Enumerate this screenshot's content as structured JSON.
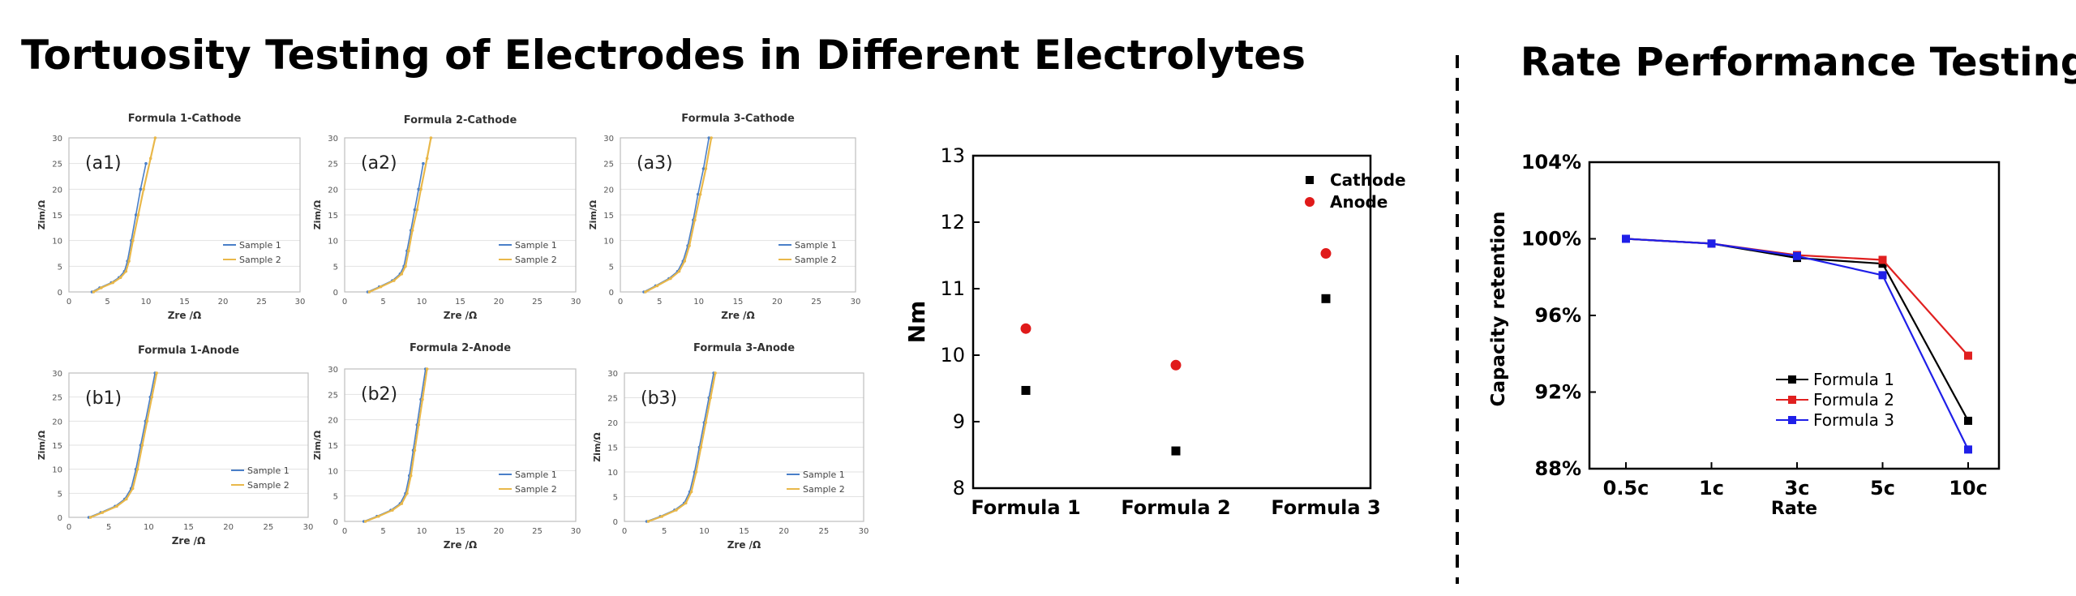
{
  "main_title": "Tortuosity Testing of Electrodes in Different Electrolytes",
  "side_title": "Rate Performance Testing",
  "nyquist_common": {
    "xlabel": "Zre /Ω",
    "ylabel": "Zim/Ω",
    "ticks": [
      "0",
      "5",
      "10",
      "15",
      "20",
      "25",
      "30"
    ],
    "legend": [
      "Sample 1",
      "Sample 2"
    ]
  },
  "chart_data": [
    {
      "type": "line",
      "title": "Formula 1-Cathode",
      "tag": "(a1)",
      "xlabel": "Zre /Ω",
      "ylabel": "Zim/Ω",
      "xlim": [
        0,
        30
      ],
      "ylim": [
        0,
        30
      ],
      "series": [
        {
          "name": "Sample 1",
          "color": "#4a7fc8",
          "x": [
            3,
            4,
            5.5,
            6.5,
            7.2,
            7.6,
            8.1,
            8.7,
            9.3,
            10.0
          ],
          "y": [
            0,
            0.8,
            1.8,
            2.8,
            4,
            6,
            10,
            15,
            20,
            25
          ]
        },
        {
          "name": "Sample 2",
          "color": "#e9b84a",
          "x": [
            3.2,
            4.2,
            5.7,
            6.7,
            7.4,
            7.8,
            8.3,
            9.0,
            9.7,
            10.6,
            11.2
          ],
          "y": [
            0,
            0.8,
            1.8,
            2.8,
            4,
            6,
            10,
            15,
            20,
            26,
            30
          ]
        }
      ]
    },
    {
      "type": "line",
      "title": "Formula 2-Cathode",
      "tag": "(a2)",
      "xlabel": "Zre /Ω",
      "ylabel": "Zim/Ω",
      "xlim": [
        0,
        30
      ],
      "ylim": [
        0,
        30
      ],
      "series": [
        {
          "name": "Sample 1",
          "color": "#4a7fc8",
          "x": [
            3,
            4.5,
            6.2,
            7.2,
            7.7,
            8.1,
            8.6,
            9.1,
            9.6,
            10.2
          ],
          "y": [
            0,
            1.0,
            2.2,
            3.5,
            5,
            8,
            12,
            16,
            20,
            25
          ]
        },
        {
          "name": "Sample 2",
          "color": "#e9b84a",
          "x": [
            3.2,
            4.7,
            6.4,
            7.4,
            7.9,
            8.3,
            8.8,
            9.4,
            9.9,
            10.7,
            11.2
          ],
          "y": [
            0,
            1.0,
            2.2,
            3.5,
            5,
            8,
            12,
            16,
            20,
            26,
            30
          ]
        }
      ]
    },
    {
      "type": "line",
      "title": "Formula 3-Cathode",
      "tag": "(a3)",
      "xlabel": "Zre /Ω",
      "ylabel": "Zim/Ω",
      "xlim": [
        0,
        30
      ],
      "ylim": [
        0,
        30
      ],
      "series": [
        {
          "name": "Sample 1",
          "color": "#4a7fc8",
          "x": [
            3,
            4.5,
            6.2,
            7.3,
            8.0,
            8.6,
            9.3,
            9.9,
            10.6,
            11.3
          ],
          "y": [
            0,
            1.2,
            2.6,
            4,
            6,
            9,
            14,
            19,
            24,
            30
          ]
        },
        {
          "name": "Sample 2",
          "color": "#e9b84a",
          "x": [
            3.2,
            4.7,
            6.4,
            7.5,
            8.2,
            8.8,
            9.5,
            10.2,
            10.9,
            11.6
          ],
          "y": [
            0,
            1.2,
            2.6,
            4,
            6,
            9,
            14,
            19,
            24,
            30
          ]
        }
      ]
    },
    {
      "type": "line",
      "title": "Formula 1-Anode",
      "tag": "(b1)",
      "xlabel": "Zre /Ω",
      "ylabel": "Zim/Ω",
      "xlim": [
        0,
        30
      ],
      "ylim": [
        0,
        30
      ],
      "series": [
        {
          "name": "Sample 1",
          "color": "#4a7fc8",
          "x": [
            2.5,
            4,
            5.8,
            7.0,
            7.8,
            8.4,
            9.0,
            9.6,
            10.2,
            10.8
          ],
          "y": [
            0,
            1.0,
            2.3,
            3.8,
            6,
            10,
            15,
            20,
            25,
            30
          ]
        },
        {
          "name": "Sample 2",
          "color": "#e9b84a",
          "x": [
            2.7,
            4.2,
            6.0,
            7.2,
            8.0,
            8.6,
            9.2,
            9.8,
            10.4,
            11.0
          ],
          "y": [
            0,
            1.0,
            2.3,
            3.8,
            6,
            10,
            15,
            20,
            25,
            30
          ]
        }
      ]
    },
    {
      "type": "line",
      "title": "Formula 2-Anode",
      "tag": "(b2)",
      "xlabel": "Zre /Ω",
      "ylabel": "Zim/Ω",
      "xlim": [
        0,
        30
      ],
      "ylim": [
        0,
        30
      ],
      "series": [
        {
          "name": "Sample 1",
          "color": "#4a7fc8",
          "x": [
            2.5,
            4.2,
            6.0,
            7.2,
            7.9,
            8.4,
            8.9,
            9.4,
            9.9,
            10.5
          ],
          "y": [
            0,
            1.0,
            2.2,
            3.5,
            5.5,
            9,
            14,
            19,
            24,
            30
          ]
        },
        {
          "name": "Sample 2",
          "color": "#e9b84a",
          "x": [
            2.7,
            4.4,
            6.2,
            7.4,
            8.1,
            8.6,
            9.1,
            9.6,
            10.1,
            10.7
          ],
          "y": [
            0,
            1.0,
            2.2,
            3.5,
            5.5,
            9,
            14,
            19,
            24,
            30
          ]
        }
      ]
    },
    {
      "type": "line",
      "title": "Formula 3-Anode",
      "tag": "(b3)",
      "xlabel": "Zre /Ω",
      "ylabel": "Zim/Ω",
      "xlim": [
        0,
        30
      ],
      "ylim": [
        0,
        30
      ],
      "series": [
        {
          "name": "Sample 1",
          "color": "#4a7fc8",
          "x": [
            2.8,
            4.5,
            6.3,
            7.5,
            8.2,
            8.8,
            9.4,
            10.0,
            10.6,
            11.2
          ],
          "y": [
            0,
            1.0,
            2.3,
            3.7,
            6,
            10,
            15,
            20,
            25,
            30
          ]
        },
        {
          "name": "Sample 2",
          "color": "#e9b84a",
          "x": [
            3.0,
            4.7,
            6.5,
            7.7,
            8.4,
            9.0,
            9.6,
            10.2,
            10.8,
            11.4
          ],
          "y": [
            0,
            1.0,
            2.3,
            3.7,
            6,
            10,
            15,
            20,
            25,
            30
          ]
        }
      ]
    },
    {
      "type": "scatter",
      "title": "",
      "xlabel": "",
      "ylabel": "Nm",
      "categories": [
        "Formula 1",
        "Formula 2",
        "Formula 3"
      ],
      "ylim": [
        8,
        13
      ],
      "yticks": [
        "8",
        "9",
        "10",
        "11",
        "12",
        "13"
      ],
      "legend_position": "top-right",
      "series": [
        {
          "name": "Cathode",
          "marker": "square",
          "color": "#000000",
          "values": [
            9.47,
            8.56,
            10.85
          ]
        },
        {
          "name": "Anode",
          "marker": "circle",
          "color": "#e01a1a",
          "values": [
            10.4,
            9.85,
            11.53
          ]
        }
      ]
    },
    {
      "type": "line",
      "title": "",
      "xlabel": "Rate",
      "ylabel": "Capacity retention",
      "categories": [
        "0.5c",
        "1c",
        "3c",
        "5c",
        "10c"
      ],
      "ylim": [
        88,
        104
      ],
      "yticks": [
        "88%",
        "92%",
        "96%",
        "100%",
        "104%"
      ],
      "legend_position": "bottom-right",
      "series": [
        {
          "name": "Formula 1",
          "color": "#000000",
          "values": [
            100,
            99.75,
            99.0,
            98.7,
            90.5
          ]
        },
        {
          "name": "Formula 2",
          "color": "#e02020",
          "values": [
            100,
            99.75,
            99.15,
            98.9,
            93.9
          ]
        },
        {
          "name": "Formula 3",
          "color": "#1f1fe8",
          "values": [
            100,
            99.75,
            99.1,
            98.1,
            89.0
          ]
        }
      ]
    }
  ]
}
